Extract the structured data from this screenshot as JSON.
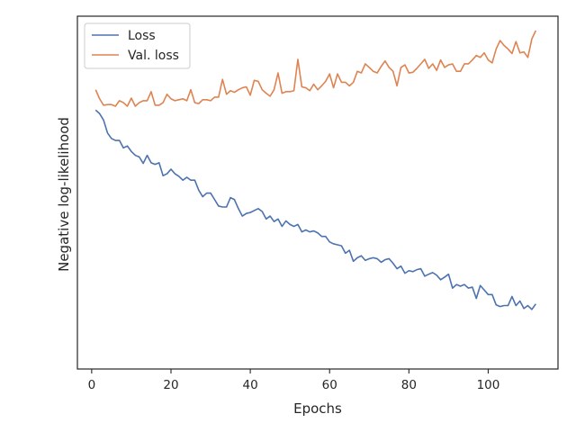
{
  "chart_data": {
    "type": "line",
    "title": "",
    "xlabel": "Epochs",
    "ylabel": "Negative log-likelihood",
    "xlim": [
      -3.6,
      117.6
    ],
    "ylim": [
      0,
      100
    ],
    "xticks": [
      0,
      20,
      40,
      60,
      80,
      100
    ],
    "yticks": [],
    "grid": false,
    "legend_position": "top-left",
    "colors": {
      "Loss": "#4c72b0",
      "Val. loss": "#dd8452",
      "axis": "#262626"
    },
    "x": [
      1,
      2,
      3,
      4,
      5,
      6,
      7,
      8,
      9,
      10,
      11,
      12,
      13,
      14,
      15,
      16,
      17,
      18,
      19,
      20,
      21,
      22,
      23,
      24,
      25,
      26,
      27,
      28,
      29,
      30,
      31,
      32,
      33,
      34,
      35,
      36,
      37,
      38,
      39,
      40,
      41,
      42,
      43,
      44,
      45,
      46,
      47,
      48,
      49,
      50,
      51,
      52,
      53,
      54,
      55,
      56,
      57,
      58,
      59,
      60,
      61,
      62,
      63,
      64,
      65,
      66,
      67,
      68,
      69,
      70,
      71,
      72,
      73,
      74,
      75,
      76,
      77,
      78,
      79,
      80,
      81,
      82,
      83,
      84,
      85,
      86,
      87,
      88,
      89,
      90,
      91,
      92,
      93,
      94,
      95,
      96,
      97,
      98,
      99,
      100,
      101,
      102,
      103,
      104,
      105,
      106,
      107,
      108,
      109,
      110,
      111,
      112
    ],
    "series": [
      {
        "name": "Loss",
        "values": [
          75.4,
          74.3,
          72.3,
          68.3,
          66.6,
          66.0,
          66.0,
          63.7,
          64.3,
          62.6,
          61.4,
          60.9,
          58.9,
          61.4,
          59.1,
          58.6,
          59.1,
          55.1,
          55.7,
          57.1,
          55.7,
          54.9,
          53.7,
          54.6,
          53.7,
          53.7,
          50.6,
          48.6,
          49.7,
          49.7,
          47.7,
          45.7,
          45.4,
          45.4,
          48.3,
          47.7,
          44.9,
          42.6,
          43.4,
          43.7,
          44.3,
          44.9,
          44.0,
          41.7,
          42.6,
          40.9,
          41.7,
          39.4,
          41.1,
          40.0,
          39.4,
          40.0,
          37.7,
          38.3,
          37.7,
          38.0,
          37.4,
          36.3,
          36.3,
          34.6,
          34.0,
          33.7,
          33.4,
          31.1,
          32.0,
          28.6,
          29.7,
          30.3,
          28.9,
          29.4,
          29.7,
          29.4,
          28.3,
          29.1,
          29.4,
          28.0,
          26.3,
          27.1,
          24.9,
          25.7,
          25.4,
          26.0,
          26.3,
          24.0,
          24.6,
          25.1,
          24.3,
          22.9,
          23.7,
          24.6,
          20.3,
          21.4,
          20.9,
          21.4,
          20.3,
          20.6,
          17.1,
          21.1,
          19.7,
          18.3,
          18.3,
          15.1,
          14.6,
          14.9,
          14.9,
          17.7,
          14.9,
          16.3,
          14.0,
          14.9,
          13.7,
          15.4
        ]
      },
      {
        "name": "Val. loss",
        "values": [
          81.7,
          78.9,
          76.9,
          77.1,
          77.1,
          76.6,
          78.3,
          77.7,
          76.6,
          79.1,
          76.6,
          77.7,
          78.3,
          78.3,
          81.1,
          76.9,
          76.9,
          77.7,
          80.3,
          78.9,
          78.3,
          78.6,
          78.9,
          78.3,
          81.7,
          77.7,
          77.4,
          78.6,
          78.6,
          78.3,
          79.4,
          79.4,
          84.9,
          80.3,
          81.4,
          80.9,
          81.7,
          82.3,
          82.6,
          80.0,
          84.6,
          84.3,
          81.7,
          80.6,
          79.7,
          81.7,
          86.9,
          80.6,
          81.1,
          81.1,
          81.4,
          91.1,
          82.6,
          82.3,
          81.4,
          83.4,
          81.7,
          82.9,
          84.3,
          86.6,
          82.3,
          86.6,
          84.0,
          84.0,
          82.9,
          84.0,
          87.4,
          86.9,
          89.7,
          88.6,
          87.4,
          86.9,
          88.9,
          90.6,
          88.6,
          87.4,
          82.9,
          88.6,
          89.4,
          86.9,
          87.1,
          88.3,
          89.7,
          91.1,
          88.3,
          89.7,
          87.7,
          90.9,
          88.6,
          89.4,
          89.7,
          87.4,
          87.4,
          89.7,
          89.7,
          90.9,
          92.3,
          91.7,
          93.1,
          90.9,
          90.0,
          94.3,
          96.9,
          95.4,
          94.3,
          92.9,
          96.6,
          93.1,
          93.4,
          91.7,
          97.4,
          100.0
        ]
      }
    ]
  }
}
